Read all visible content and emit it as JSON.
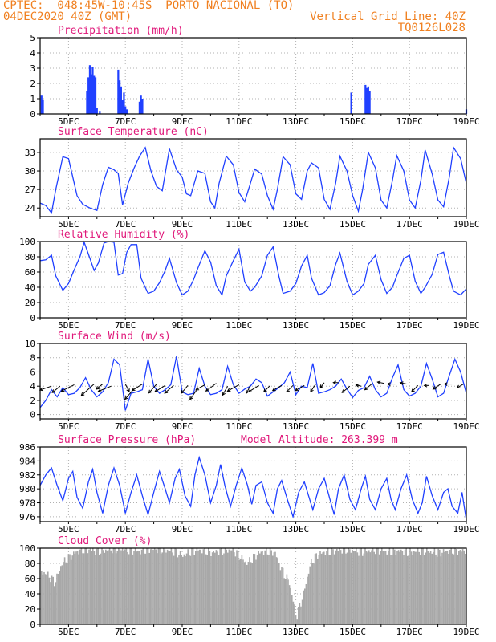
{
  "header": {
    "line1": "CPTEC:  048:45W-10:45S  PORTO NACIONAL (TO)",
    "line2": "04DEC2020 40Z (GMT)",
    "vgrid": "Vertical Grid Line: 40Z",
    "code": "TQ0126L028"
  },
  "colors": {
    "header": "#f08020",
    "panel_title": "#e0187a",
    "series": "#2040ff",
    "cloud": "#a8a8a8",
    "grid": "#b0b0b0"
  },
  "x_axis": {
    "start_day": 4,
    "end_day": 19,
    "tick_labels": [
      "5DEC",
      "7DEC",
      "9DEC",
      "11DEC",
      "13DEC",
      "15DEC",
      "17DEC",
      "19DEC"
    ],
    "tick_days": [
      5,
      7,
      9,
      11,
      13,
      15,
      17,
      19
    ]
  },
  "chart_data": [
    {
      "type": "bar",
      "title": "Precipitation (mm/h)",
      "ylim": [
        0,
        5
      ],
      "yticks": [
        0,
        1,
        2,
        3,
        4,
        5
      ],
      "x": [
        4.05,
        4.1,
        5.65,
        5.7,
        5.75,
        5.8,
        5.85,
        5.9,
        5.95,
        6.0,
        6.1,
        6.75,
        6.8,
        6.85,
        6.9,
        6.95,
        7.0,
        7.05,
        7.5,
        7.55,
        7.6,
        14.95,
        15.45,
        15.5,
        15.55,
        15.6,
        19.0
      ],
      "values": [
        1.2,
        0.9,
        1.5,
        2.4,
        3.2,
        2.6,
        3.1,
        2.5,
        2.4,
        0.4,
        0.2,
        2.9,
        2.2,
        1.8,
        0.9,
        1.4,
        0.5,
        0.3,
        0.8,
        1.2,
        1.0,
        1.4,
        1.9,
        1.7,
        1.8,
        1.5,
        0.3
      ]
    },
    {
      "type": "line",
      "title": "Surface Temperature (nC)",
      "ylim": [
        22.6,
        35.2
      ],
      "yticks": [
        24,
        27,
        30,
        33
      ],
      "x": [
        4.0,
        4.2,
        4.4,
        4.55,
        4.8,
        5.0,
        5.15,
        5.3,
        5.5,
        5.75,
        6.0,
        6.2,
        6.4,
        6.6,
        6.75,
        6.9,
        7.1,
        7.3,
        7.5,
        7.7,
        7.9,
        8.1,
        8.3,
        8.55,
        8.8,
        9.0,
        9.15,
        9.3,
        9.55,
        9.8,
        10.0,
        10.15,
        10.3,
        10.55,
        10.8,
        11.0,
        11.2,
        11.4,
        11.55,
        11.8,
        12.0,
        12.2,
        12.35,
        12.55,
        12.8,
        13.0,
        13.2,
        13.4,
        13.55,
        13.8,
        14.0,
        14.2,
        14.4,
        14.55,
        14.8,
        15.0,
        15.2,
        15.35,
        15.55,
        15.8,
        16.0,
        16.2,
        16.4,
        16.55,
        16.8,
        17.0,
        17.2,
        17.4,
        17.55,
        17.8,
        18.0,
        18.2,
        18.4,
        18.55,
        18.8,
        19.0
      ],
      "values": [
        24.8,
        24.4,
        23.2,
        27.0,
        32.3,
        32.0,
        29.0,
        26.0,
        24.6,
        24.0,
        23.6,
        27.8,
        30.6,
        30.2,
        29.6,
        24.5,
        28.0,
        30.4,
        32.4,
        33.8,
        30.0,
        27.5,
        26.8,
        33.6,
        30.2,
        29.0,
        26.3,
        26.0,
        30.0,
        29.6,
        25.0,
        24.0,
        28.0,
        32.4,
        31.0,
        26.5,
        25.0,
        28.0,
        30.3,
        29.5,
        26.0,
        23.8,
        27.0,
        32.3,
        31.0,
        26.3,
        25.4,
        30.0,
        31.3,
        30.5,
        25.4,
        23.8,
        28.0,
        32.4,
        30.0,
        26.0,
        23.5,
        27.0,
        33.0,
        30.5,
        25.3,
        24.0,
        28.5,
        32.5,
        30.0,
        25.3,
        24.0,
        28.5,
        33.4,
        29.5,
        25.3,
        24.2,
        29.0,
        33.8,
        32.0,
        28.0
      ]
    },
    {
      "type": "line",
      "title": "Relative Humidity (%)",
      "ylim": [
        0,
        100
      ],
      "yticks": [
        0,
        20,
        40,
        60,
        80,
        100
      ],
      "x": [
        4.0,
        4.2,
        4.4,
        4.55,
        4.8,
        5.0,
        5.2,
        5.4,
        5.55,
        5.75,
        5.9,
        6.05,
        6.25,
        6.4,
        6.6,
        6.75,
        6.9,
        7.05,
        7.2,
        7.4,
        7.55,
        7.8,
        8.0,
        8.2,
        8.4,
        8.55,
        8.8,
        9.0,
        9.2,
        9.4,
        9.55,
        9.8,
        10.0,
        10.2,
        10.4,
        10.55,
        10.8,
        11.0,
        11.2,
        11.4,
        11.55,
        11.8,
        12.0,
        12.2,
        12.4,
        12.55,
        12.8,
        13.0,
        13.2,
        13.4,
        13.55,
        13.8,
        14.0,
        14.2,
        14.4,
        14.55,
        14.8,
        15.0,
        15.2,
        15.4,
        15.55,
        15.8,
        16.0,
        16.2,
        16.4,
        16.55,
        16.8,
        17.0,
        17.2,
        17.4,
        17.55,
        17.8,
        18.0,
        18.2,
        18.4,
        18.55,
        18.8,
        19.0
      ],
      "values": [
        75,
        76,
        82,
        55,
        36,
        45,
        63,
        80,
        99,
        78,
        62,
        72,
        98,
        100,
        99,
        56,
        58,
        86,
        96,
        96,
        52,
        32,
        35,
        46,
        62,
        78,
        46,
        30,
        35,
        50,
        65,
        88,
        73,
        42,
        30,
        55,
        75,
        90,
        47,
        35,
        40,
        55,
        82,
        93,
        55,
        32,
        35,
        45,
        68,
        82,
        52,
        30,
        33,
        42,
        70,
        85,
        48,
        30,
        35,
        45,
        70,
        82,
        50,
        32,
        40,
        55,
        78,
        82,
        48,
        32,
        40,
        57,
        83,
        86,
        55,
        35,
        30,
        38
      ]
    },
    {
      "type": "line",
      "title": "Surface Wind (m/s)",
      "ylim": [
        -0.6,
        10
      ],
      "yticks": [
        0,
        2,
        4,
        6,
        8,
        10
      ],
      "x": [
        4.0,
        4.2,
        4.4,
        4.6,
        4.8,
        5.0,
        5.2,
        5.4,
        5.6,
        5.8,
        6.0,
        6.2,
        6.4,
        6.6,
        6.8,
        7.0,
        7.2,
        7.4,
        7.6,
        7.8,
        8.0,
        8.2,
        8.4,
        8.6,
        8.8,
        9.0,
        9.2,
        9.4,
        9.6,
        9.8,
        10.0,
        10.2,
        10.4,
        10.6,
        10.8,
        11.0,
        11.2,
        11.4,
        11.6,
        11.8,
        12.0,
        12.2,
        12.4,
        12.6,
        12.8,
        13.0,
        13.2,
        13.4,
        13.6,
        13.8,
        14.0,
        14.2,
        14.4,
        14.6,
        14.8,
        15.0,
        15.2,
        15.4,
        15.6,
        15.8,
        16.0,
        16.2,
        16.4,
        16.6,
        16.8,
        17.0,
        17.2,
        17.4,
        17.6,
        17.8,
        18.0,
        18.2,
        18.4,
        18.6,
        18.8,
        19.0
      ],
      "values": [
        1.0,
        2.0,
        3.5,
        2.5,
        3.8,
        2.8,
        3.0,
        3.8,
        5.2,
        3.5,
        2.5,
        3.2,
        4.5,
        7.8,
        7.0,
        0.6,
        3.0,
        3.2,
        3.5,
        7.8,
        4.0,
        3.0,
        3.5,
        4.2,
        8.2,
        3.2,
        2.8,
        3.0,
        6.5,
        4.0,
        2.8,
        3.0,
        3.5,
        6.8,
        4.2,
        3.0,
        3.6,
        4.0,
        5.0,
        4.5,
        2.6,
        3.2,
        3.8,
        4.5,
        6.0,
        2.8,
        4.0,
        3.8,
        7.2,
        3.0,
        3.2,
        3.5,
        4.0,
        5.0,
        3.6,
        2.4,
        3.4,
        3.8,
        5.4,
        3.5,
        2.5,
        3.0,
        5.2,
        7.0,
        3.5,
        2.6,
        3.0,
        4.0,
        7.2,
        5.0,
        2.5,
        3.0,
        5.5,
        7.8,
        6.0,
        3.0
      ],
      "barbs_x": [
        4.4,
        4.7,
        5.2,
        5.9,
        6.2,
        6.5,
        7.0,
        7.3,
        7.6,
        8.1,
        8.4,
        8.7,
        9.2,
        9.5,
        9.8,
        10.2,
        10.6,
        11.0,
        11.4,
        11.7,
        12.1,
        12.5,
        12.9,
        13.3,
        13.7,
        14.0,
        14.5,
        14.9,
        15.3,
        15.7,
        16.1,
        16.5,
        16.9,
        17.3,
        17.7,
        18.1,
        18.5,
        18.9
      ],
      "barbs_y": [
        4.0,
        4.0,
        4.2,
        4.3,
        4.3,
        4.0,
        4.3,
        3.6,
        4.3,
        4.3,
        4.1,
        4.1,
        4.1,
        3.4,
        4.2,
        4.4,
        4.0,
        4.2,
        4.1,
        4.1,
        4.1,
        4.1,
        4.1,
        4.1,
        4.3,
        4.5,
        4.5,
        4.0,
        4.0,
        4.4,
        4.4,
        4.3,
        4.3,
        4.1,
        4.1,
        4.3,
        4.3,
        4.3
      ],
      "barbs_u": [
        -0.9,
        -0.6,
        -1.0,
        -1.0,
        -0.5,
        -1.0,
        0.3,
        -0.7,
        -0.8,
        -0.6,
        -0.8,
        -0.7,
        -0.5,
        -0.5,
        -0.7,
        -0.8,
        -0.4,
        -0.9,
        -0.3,
        -0.8,
        -0.5,
        -0.7,
        -0.5,
        -0.7,
        -0.4,
        -0.3,
        -0.4,
        -0.6,
        -0.4,
        -0.6,
        -0.5,
        -0.6,
        -0.5,
        -0.5,
        -0.4,
        -0.6,
        -0.6,
        -0.5
      ],
      "barbs_v": [
        -0.3,
        -0.5,
        -0.5,
        -0.9,
        -0.4,
        -0.4,
        -0.6,
        -0.8,
        -0.5,
        -0.7,
        -0.5,
        -0.6,
        -0.6,
        -0.7,
        -0.4,
        -0.6,
        -0.7,
        -0.5,
        -0.6,
        -0.5,
        -0.5,
        -0.4,
        -0.5,
        -0.4,
        -0.6,
        -0.4,
        0.0,
        -0.5,
        0.1,
        -0.5,
        0.1,
        0.0,
        0.1,
        -0.5,
        0.0,
        -0.4,
        0.0,
        -0.3
      ]
    },
    {
      "type": "line",
      "title": "Surface Pressure (hPa)",
      "annotation": "Model Altitude: 263.399 m",
      "ylim": [
        975.3,
        986
      ],
      "yticks": [
        976,
        978,
        980,
        982,
        984,
        986
      ],
      "x": [
        4.0,
        4.2,
        4.4,
        4.6,
        4.8,
        5.0,
        5.15,
        5.3,
        5.5,
        5.7,
        5.85,
        6.0,
        6.2,
        6.4,
        6.6,
        6.8,
        7.0,
        7.2,
        7.4,
        7.6,
        7.8,
        8.0,
        8.2,
        8.4,
        8.55,
        8.75,
        8.9,
        9.1,
        9.3,
        9.45,
        9.6,
        9.8,
        10.0,
        10.2,
        10.35,
        10.5,
        10.7,
        10.9,
        11.1,
        11.3,
        11.45,
        11.6,
        11.8,
        12.0,
        12.2,
        12.35,
        12.5,
        12.7,
        12.9,
        13.1,
        13.3,
        13.45,
        13.6,
        13.8,
        14.0,
        14.2,
        14.35,
        14.5,
        14.7,
        14.9,
        15.1,
        15.3,
        15.45,
        15.6,
        15.8,
        16.0,
        16.2,
        16.35,
        16.5,
        16.7,
        16.9,
        17.1,
        17.3,
        17.45,
        17.6,
        17.8,
        18.0,
        18.2,
        18.35,
        18.5,
        18.7,
        18.85,
        19.0
      ],
      "values": [
        980.5,
        982.0,
        983.0,
        980.5,
        978.3,
        981.5,
        982.5,
        978.8,
        977.2,
        981.0,
        982.8,
        979.5,
        976.5,
        980.5,
        983.0,
        980.5,
        976.5,
        979.5,
        982.0,
        979.0,
        976.3,
        979.5,
        982.5,
        980.0,
        978.0,
        981.5,
        982.8,
        979.0,
        977.5,
        982.0,
        984.5,
        982.0,
        978.0,
        980.5,
        983.5,
        980.5,
        977.5,
        980.5,
        983.0,
        980.5,
        977.8,
        980.5,
        981.0,
        978.0,
        976.5,
        980.0,
        981.2,
        978.5,
        976.0,
        979.5,
        981.0,
        979.0,
        977.0,
        980.0,
        981.5,
        978.5,
        976.3,
        980.0,
        982.0,
        978.5,
        977.0,
        980.0,
        981.8,
        978.5,
        977.0,
        980.0,
        981.5,
        978.5,
        977.0,
        980.0,
        982.0,
        978.5,
        976.5,
        978.0,
        981.8,
        979.0,
        977.0,
        979.5,
        980.0,
        977.5,
        976.5,
        979.5,
        975.5
      ]
    },
    {
      "type": "area",
      "title": "Cloud Cover (%)",
      "ylim": [
        0,
        100
      ],
      "yticks": [
        0,
        20,
        40,
        60,
        80,
        100
      ],
      "x": [
        4.0,
        4.25,
        4.5,
        4.75,
        5.0,
        5.25,
        5.5,
        5.75,
        6.0,
        6.25,
        6.5,
        6.75,
        7.0,
        7.25,
        7.5,
        7.75,
        8.0,
        8.25,
        8.5,
        8.75,
        9.0,
        9.25,
        9.5,
        9.75,
        10.0,
        10.25,
        10.5,
        10.75,
        11.0,
        11.25,
        11.5,
        11.75,
        12.0,
        12.25,
        12.5,
        12.75,
        13.0,
        13.25,
        13.5,
        13.75,
        14.0,
        14.25,
        14.5,
        14.75,
        15.0,
        15.25,
        15.5,
        15.75,
        16.0,
        16.25,
        16.5,
        16.75,
        17.0,
        17.25,
        17.5,
        17.75,
        18.0,
        18.25,
        18.5,
        18.75,
        19.0
      ],
      "values": [
        70,
        65,
        55,
        80,
        88,
        95,
        98,
        98,
        96,
        97,
        99,
        99,
        98,
        97,
        96,
        98,
        99,
        98,
        97,
        95,
        90,
        95,
        98,
        97,
        94,
        96,
        97,
        98,
        90,
        80,
        88,
        95,
        96,
        94,
        70,
        55,
        10,
        40,
        80,
        92,
        95,
        96,
        98,
        98,
        97,
        95,
        96,
        98,
        97,
        95,
        96,
        96,
        94,
        96,
        97,
        95,
        94,
        96,
        97,
        96,
        98
      ]
    }
  ]
}
